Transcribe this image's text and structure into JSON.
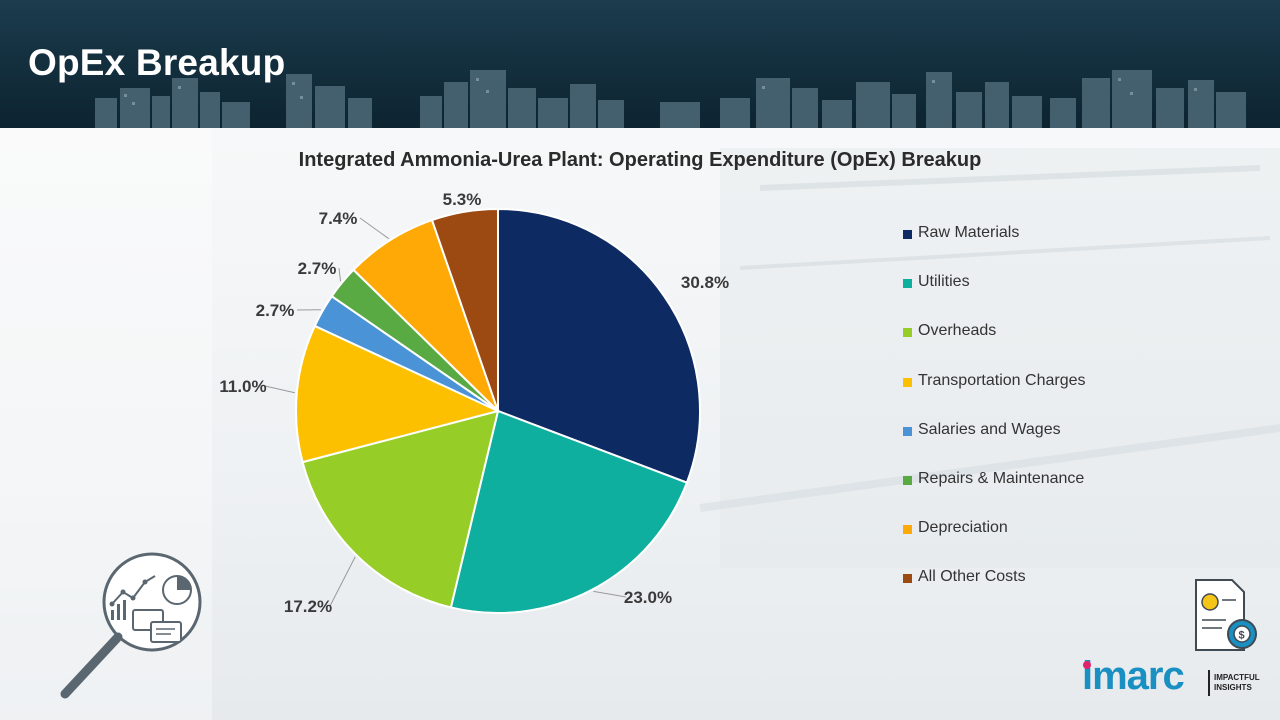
{
  "page": {
    "title": "OpEx Breakup"
  },
  "chart_data": {
    "type": "pie",
    "title": "Integrated Ammonia-Urea Plant: Operating Expenditure (OpEx) Breakup",
    "categories": [
      "Raw Materials",
      "Utilities",
      "Overheads",
      "Transportation Charges",
      "Salaries and Wages",
      "Repairs & Maintenance",
      "Depreciation",
      "All Other Costs"
    ],
    "values": [
      30.8,
      23.0,
      17.2,
      11.0,
      2.7,
      2.7,
      7.4,
      5.3
    ],
    "labels": [
      "30.8%",
      "23.0%",
      "17.2%",
      "11.0%",
      "2.7%",
      "2.7%",
      "7.4%",
      "5.3%"
    ],
    "colors": [
      "#0e2a63",
      "#0faf9f",
      "#97cd27",
      "#fdc000",
      "#4a93d7",
      "#5aaa44",
      "#ffa906",
      "#9c4a12"
    ],
    "start": "12 o'clock, clockwise",
    "legend_position": "right"
  },
  "logo": {
    "name": "imarc",
    "tagline_line1": "IMPACTFUL",
    "tagline_line2": "INSIGHTS"
  },
  "icons": {
    "magnifier": "magnifier-analytics-icon",
    "document": "cost-document-icon"
  }
}
